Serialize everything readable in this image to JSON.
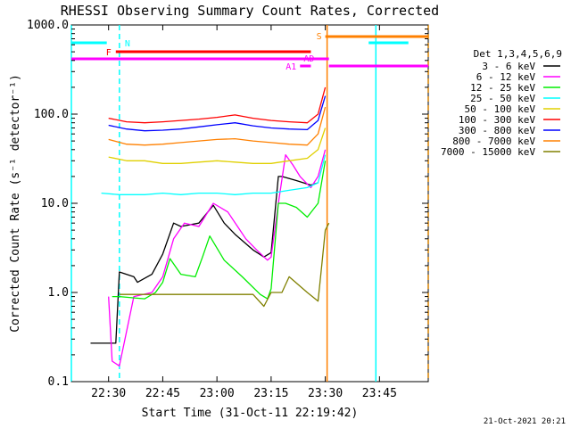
{
  "chart_data": {
    "type": "line",
    "title": "RHESSI Observing Summary Count Rates, Corrected",
    "xlabel": "Start Time (31-Oct-11 22:19:42)",
    "ylabel": "Corrected Count Rate (s⁻¹ detector⁻¹)",
    "footer": "21-Oct-2021 20:21",
    "yscale": "log",
    "xlim": [
      "22:19:42",
      "23:58:30"
    ],
    "ylim": [
      0.1,
      1000
    ],
    "x_ticks": [
      "22:30",
      "22:45",
      "23:00",
      "23:15",
      "23:30",
      "23:45"
    ],
    "y_ticks": [
      "0.1",
      "1.0",
      "10.0",
      "100.0",
      "1000.0"
    ],
    "grid": false,
    "legend": {
      "placement": "right",
      "title": "Det 1,3,4,5,6,9",
      "entries": [
        {
          "label": "3 - 6 keV",
          "color": "#000000"
        },
        {
          "label": "6 - 12 keV",
          "color": "#ff00ff"
        },
        {
          "label": "12 - 25 keV",
          "color": "#00ee00"
        },
        {
          "label": "25 - 50 keV",
          "color": "#00ffff"
        },
        {
          "label": "50 - 100 keV",
          "color": "#e0d000"
        },
        {
          "label": "100 - 300 keV",
          "color": "#ff0000"
        },
        {
          "label": "300 - 800 keV",
          "color": "#0000ff"
        },
        {
          "label": "800 - 7000 keV",
          "color": "#ff8000"
        },
        {
          "label": "7000 - 15000 keV",
          "color": "#808000"
        }
      ]
    },
    "series": [
      {
        "name": "3 - 6 keV",
        "color": "#000000",
        "x": [
          "22:25",
          "22:30",
          "22:32",
          "22:33",
          "22:37",
          "22:38",
          "22:42",
          "22:45",
          "22:48",
          "22:50",
          "22:55",
          "22:59",
          "23:02",
          "23:05",
          "23:10",
          "23:13",
          "23:15",
          "23:17",
          "23:18",
          "23:22",
          "23:26",
          "23:28"
        ],
        "y": [
          0.27,
          0.27,
          0.27,
          1.7,
          1.5,
          1.3,
          1.6,
          2.7,
          6,
          5.5,
          6,
          9.5,
          6,
          4.5,
          3,
          2.5,
          2.8,
          20,
          20,
          18,
          16,
          17
        ]
      },
      {
        "name": "6 - 12 keV",
        "color": "#ff00ff",
        "x": [
          "22:30",
          "22:31",
          "22:33",
          "22:37",
          "22:42",
          "22:45",
          "22:48",
          "22:51",
          "22:55",
          "22:59",
          "23:03",
          "23:08",
          "23:11",
          "23:14",
          "23:15",
          "23:17",
          "23:19",
          "23:21",
          "23:23",
          "23:26",
          "23:28",
          "23:30"
        ],
        "y": [
          0.9,
          0.17,
          0.15,
          0.9,
          1,
          1.5,
          4,
          6,
          5.5,
          10,
          8,
          4,
          3,
          2.3,
          2.5,
          10,
          35,
          27,
          20,
          15,
          20,
          40
        ]
      },
      {
        "name": "12 - 25 keV",
        "color": "#00ee00",
        "x": [
          "22:31",
          "22:33",
          "22:40",
          "22:43",
          "22:45",
          "22:47",
          "22:50",
          "22:54",
          "22:56",
          "22:58",
          "23:02",
          "23:07",
          "23:12",
          "23:14",
          "23:15",
          "23:17",
          "23:19",
          "23:22",
          "23:25",
          "23:28",
          "23:30"
        ],
        "y": [
          0.9,
          0.9,
          0.85,
          1,
          1.3,
          2.4,
          1.6,
          1.5,
          2.5,
          4.3,
          2.3,
          1.5,
          0.95,
          0.85,
          1.1,
          10,
          10,
          9,
          7,
          10,
          30
        ]
      },
      {
        "name": "25 - 50 keV",
        "color": "#00ffff",
        "x": [
          "22:28",
          "22:33",
          "22:40",
          "22:45",
          "22:50",
          "22:55",
          "23:00",
          "23:05",
          "23:10",
          "23:15",
          "23:20",
          "23:25",
          "23:28",
          "23:30"
        ],
        "y": [
          13,
          12.5,
          12.5,
          13,
          12.5,
          13,
          13,
          12.5,
          13,
          13,
          14,
          15,
          17,
          35
        ]
      },
      {
        "name": "50 - 100 keV",
        "color": "#e0d000",
        "x": [
          "22:30",
          "22:35",
          "22:40",
          "22:45",
          "22:50",
          "22:55",
          "23:00",
          "23:05",
          "23:10",
          "23:15",
          "23:20",
          "23:25",
          "23:28",
          "23:30"
        ],
        "y": [
          33,
          30,
          30,
          28,
          28,
          29,
          30,
          29,
          28,
          28,
          30,
          32,
          40,
          70
        ]
      },
      {
        "name": "100 - 300 keV",
        "color": "#ff0000",
        "x": [
          "22:30",
          "22:35",
          "22:40",
          "22:45",
          "22:50",
          "22:55",
          "23:00",
          "23:05",
          "23:10",
          "23:15",
          "23:20",
          "23:25",
          "23:28",
          "23:30"
        ],
        "y": [
          90,
          82,
          80,
          82,
          85,
          88,
          92,
          98,
          90,
          85,
          82,
          80,
          100,
          200
        ]
      },
      {
        "name": "300 - 800 keV",
        "color": "#0000ff",
        "x": [
          "22:30",
          "22:35",
          "22:40",
          "22:45",
          "22:50",
          "22:55",
          "23:00",
          "23:05",
          "23:10",
          "23:15",
          "23:20",
          "23:25",
          "23:28",
          "23:30"
        ],
        "y": [
          75,
          68,
          65,
          66,
          68,
          72,
          76,
          80,
          74,
          70,
          68,
          67,
          85,
          160
        ]
      },
      {
        "name": "800 - 7000 keV",
        "color": "#ff8000",
        "x": [
          "22:30",
          "22:35",
          "22:40",
          "22:45",
          "22:50",
          "22:55",
          "23:00",
          "23:05",
          "23:10",
          "23:15",
          "23:20",
          "23:25",
          "23:28",
          "23:30"
        ],
        "y": [
          52,
          46,
          45,
          46,
          48,
          50,
          52,
          53,
          50,
          48,
          46,
          45,
          60,
          120
        ]
      },
      {
        "name": "7000 - 15000 keV",
        "color": "#808000",
        "x": [
          "22:33",
          "22:40",
          "22:50",
          "23:00",
          "23:10",
          "23:13",
          "23:15",
          "23:18",
          "23:20",
          "23:25",
          "23:28",
          "23:29",
          "23:30",
          "23:31"
        ],
        "y": [
          0.95,
          0.95,
          0.95,
          0.95,
          0.95,
          0.7,
          1,
          1,
          1.5,
          1,
          0.8,
          2,
          5,
          6
        ]
      }
    ],
    "annotations": [
      {
        "text": "N",
        "color": "#00ffff"
      },
      {
        "text": "F",
        "color": "#ff0000"
      },
      {
        "text": "S",
        "color": "#ff8000"
      },
      {
        "text": "AD",
        "color": "#ff00ff"
      },
      {
        "text": "A1",
        "color": "#ff00ff"
      }
    ],
    "flag_bars": [
      {
        "name": "N",
        "color": "#00ffff",
        "intervals": [
          [
            "22:19:42",
            "22:29:30"
          ],
          [
            "23:42",
            "23:53"
          ]
        ]
      },
      {
        "name": "F",
        "color": "#ff0000",
        "intervals": [
          [
            "22:32",
            "23:26"
          ]
        ]
      },
      {
        "name": "S",
        "color": "#ff8000",
        "intervals": [
          [
            "23:30",
            "23:58:30"
          ]
        ]
      },
      {
        "name": "AD",
        "color": "#ff00ff",
        "intervals": [
          [
            "22:19:42",
            "23:31"
          ]
        ]
      },
      {
        "name": "A1",
        "color": "#ff00ff",
        "intervals": [
          [
            "23:23",
            "23:26"
          ],
          [
            "23:31",
            "23:58:30"
          ]
        ]
      }
    ],
    "vertical_markers": [
      {
        "color": "#00ffff",
        "style": "solid",
        "x": "22:19:42"
      },
      {
        "color": "#00ffff",
        "style": "dashed",
        "x": "22:33"
      },
      {
        "color": "#ff8000",
        "style": "solid",
        "x": "23:30:30"
      },
      {
        "color": "#00ffff",
        "style": "solid",
        "x": "23:44"
      },
      {
        "color": "#00ffff",
        "style": "dashed",
        "x": "23:58:30"
      },
      {
        "color": "#ff8000",
        "style": "dashed",
        "x": "23:58:30"
      }
    ]
  }
}
